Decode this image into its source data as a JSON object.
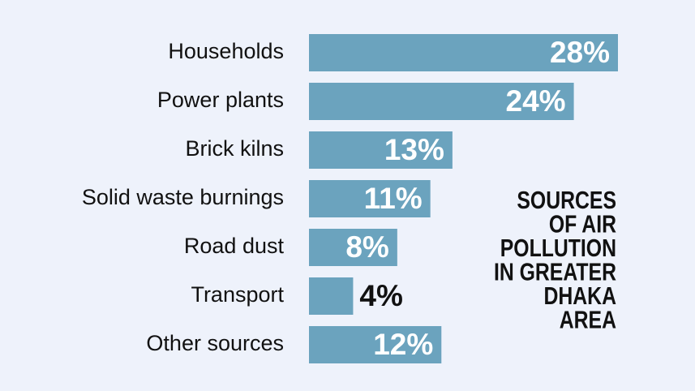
{
  "chart_data": {
    "type": "bar",
    "orientation": "horizontal",
    "title": [
      "SOURCES",
      "OF AIR",
      "POLLUTION",
      "IN GREATER",
      "DHAKA",
      "AREA"
    ],
    "categories": [
      "Households",
      "Power plants",
      "Brick kilns",
      "Solid waste burnings",
      "Road dust",
      "Transport",
      "Other sources"
    ],
    "values": [
      28,
      24,
      13,
      11,
      8,
      4,
      12
    ],
    "value_labels": [
      "28%",
      "24%",
      "13%",
      "11%",
      "8%",
      "4%",
      "12%"
    ],
    "color": "#6ba3be",
    "xlim": [
      0,
      28
    ]
  }
}
